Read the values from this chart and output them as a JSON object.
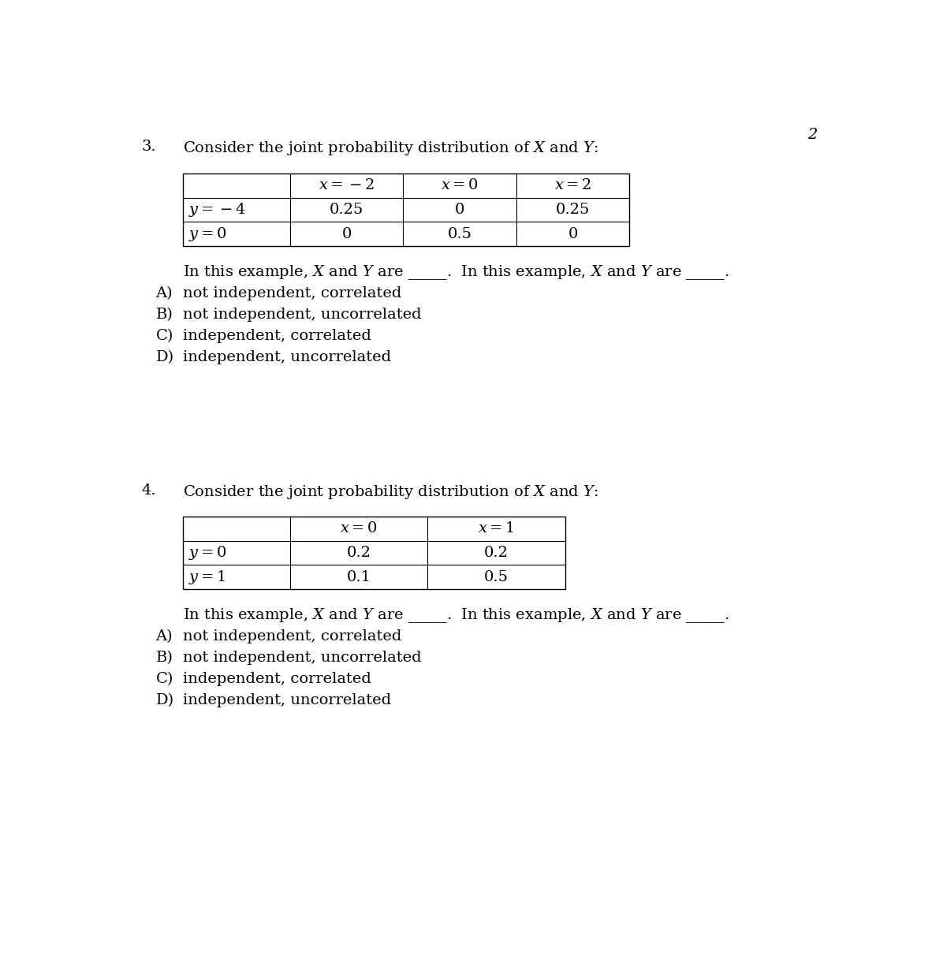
{
  "page_number": "2",
  "bg_color": "#ffffff",
  "text_color": "#000000",
  "font_size": 14,
  "q3_number": "3.",
  "q3_col_headers": [
    "",
    "$x = -2$",
    "$x = 0$",
    "$x = 2$"
  ],
  "q3_row_labels": [
    "$y = -4$",
    "$y = 0$"
  ],
  "q3_data": [
    [
      "0.25",
      "0",
      "0.25"
    ],
    [
      "0",
      "0.5",
      "0"
    ]
  ],
  "q3_options": [
    "not independent, correlated",
    "not independent, uncorrelated",
    "independent, correlated",
    "independent, uncorrelated"
  ],
  "q3_option_labels": [
    "A)",
    "B)",
    "C)",
    "D)"
  ],
  "q4_number": "4.",
  "q4_col_headers": [
    "",
    "$x = 0$",
    "$x = 1$"
  ],
  "q4_row_labels": [
    "$y = 0$",
    "$y = 1$"
  ],
  "q4_data": [
    [
      "0.2",
      "0.2"
    ],
    [
      "0.1",
      "0.5"
    ]
  ],
  "q4_options": [
    "not independent, correlated",
    "not independent, uncorrelated",
    "independent, correlated",
    "independent, uncorrelated"
  ],
  "q4_option_labels": [
    "A)",
    "B)",
    "C)",
    "D)"
  ]
}
